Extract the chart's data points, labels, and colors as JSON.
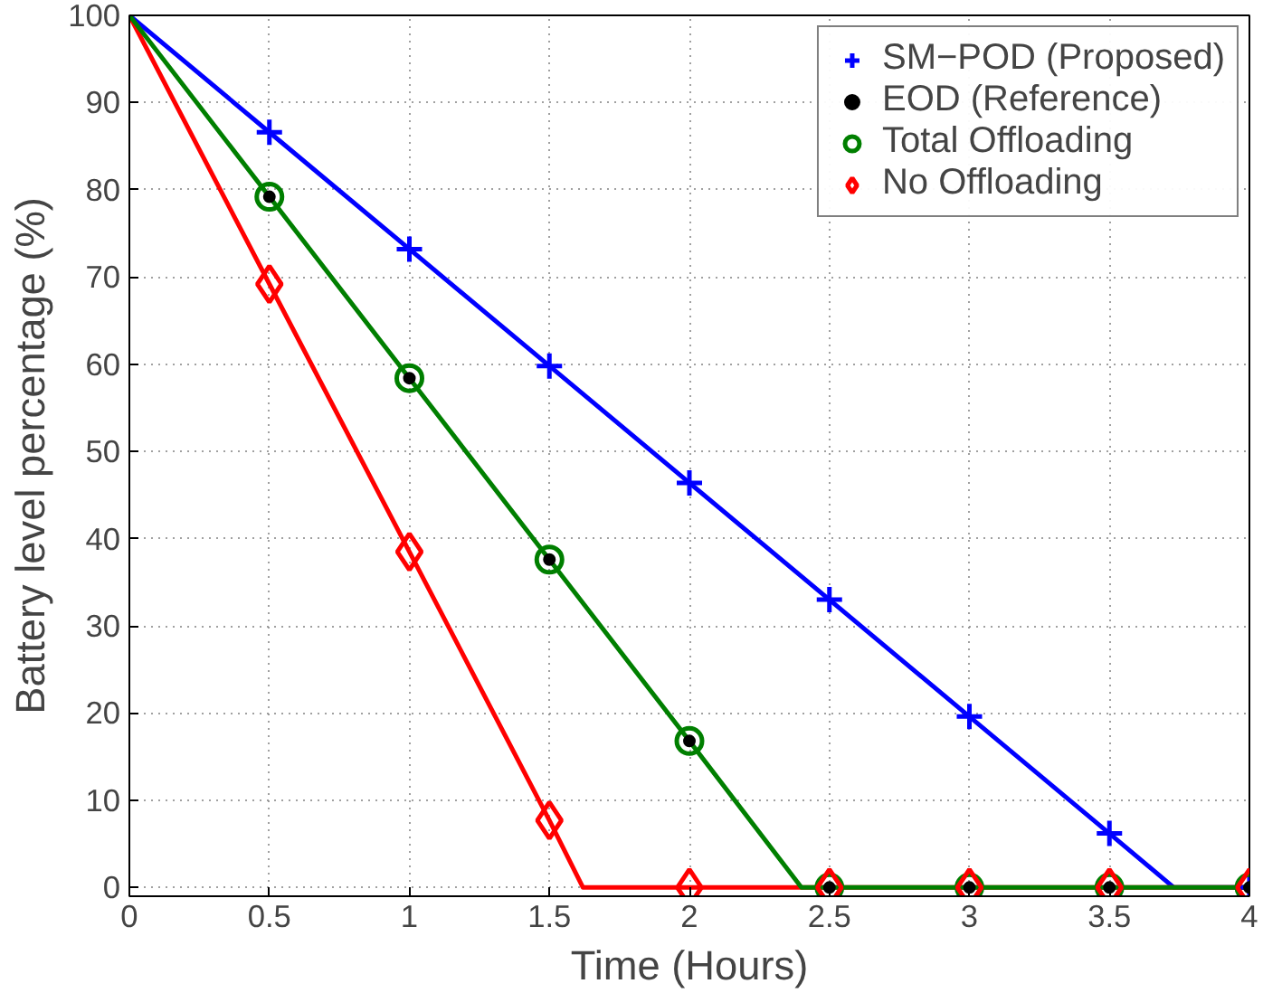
{
  "chart_data": {
    "type": "line",
    "xlabel": "Time (Hours)",
    "ylabel": "Battery level percentage (%)",
    "xlim": [
      0,
      4
    ],
    "ylim": [
      -1,
      100
    ],
    "xticks": [
      0,
      0.5,
      1,
      1.5,
      2,
      2.5,
      3,
      3.5,
      4
    ],
    "yticks": [
      0,
      10,
      20,
      30,
      40,
      50,
      60,
      70,
      80,
      90,
      100
    ],
    "grid": true,
    "legend": "top right",
    "series": [
      {
        "color": "#0000ff",
        "marker": "none",
        "x": [
          0,
          0.5,
          1,
          1.5,
          2,
          2.5,
          3,
          3.5,
          3.73,
          4
        ],
        "values": [
          100,
          86.6,
          73.2,
          59.8,
          46.4,
          33.0,
          19.6,
          6.2,
          0,
          0
        ]
      },
      {
        "color": "#ff0000",
        "marker": "none",
        "x": [
          0,
          0.5,
          1,
          1.5,
          1.62,
          4
        ],
        "values": [
          100,
          69.2,
          38.5,
          7.7,
          0,
          0
        ]
      },
      {
        "color": "#007f00",
        "marker": "none",
        "x": [
          0,
          0.5,
          1,
          1.5,
          2,
          2.4,
          4
        ],
        "values": [
          100,
          79.2,
          58.4,
          37.6,
          16.8,
          0,
          0
        ]
      },
      {
        "type": "scatter",
        "name": "SM−POD (Proposed)",
        "color": "#0000ff",
        "marker": "cross",
        "x": [
          0.5,
          1,
          1.5,
          2,
          2.5,
          3,
          3.5,
          4
        ],
        "values": [
          86.6,
          73.2,
          59.8,
          46.4,
          33.0,
          19.6,
          6.2,
          0
        ]
      },
      {
        "type": "scatter",
        "name": "EOD (Reference)",
        "color": "#000000",
        "marker": "dot",
        "x": [
          0.5,
          1,
          1.5,
          2,
          2.5,
          3,
          3.5,
          4
        ],
        "values": [
          79.2,
          58.4,
          37.6,
          16.8,
          0,
          0,
          0,
          0
        ]
      },
      {
        "type": "scatter",
        "name": "Total Offloading",
        "color": "#007f00",
        "marker": "circle",
        "x": [
          0.5,
          1,
          1.5,
          2,
          2.5,
          3,
          3.5,
          4
        ],
        "values": [
          79.2,
          58.4,
          37.6,
          16.8,
          0,
          0,
          0,
          0
        ]
      },
      {
        "type": "scatter",
        "name": "No Offloading",
        "color": "#ff0000",
        "marker": "diamond",
        "x": [
          0.5,
          1,
          1.5,
          2,
          2.5,
          3,
          3.5,
          4
        ],
        "values": [
          69.2,
          38.5,
          7.7,
          0,
          0,
          0,
          0,
          0
        ]
      }
    ]
  }
}
